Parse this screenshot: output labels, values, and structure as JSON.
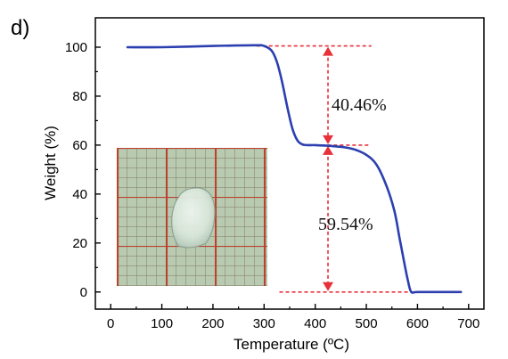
{
  "chart_data": {
    "type": "line",
    "panel_label": "d)",
    "xlabel": "Temperature (ºC)",
    "ylabel": "Weight (%)",
    "xlim": [
      -30,
      730
    ],
    "ylim": [
      -7,
      112
    ],
    "x_ticks": [
      0,
      100,
      200,
      300,
      400,
      500,
      600,
      700
    ],
    "y_ticks": [
      0,
      20,
      40,
      60,
      80,
      100
    ],
    "x_tick_labels": [
      "0",
      "100",
      "200",
      "300",
      "400",
      "500",
      "600",
      "700"
    ],
    "y_tick_labels": [
      "0",
      "20",
      "40",
      "60",
      "80",
      "100"
    ],
    "grid": false,
    "series": [
      {
        "color": "#2b3fb0",
        "x": [
          33,
          100,
          200,
          280,
          300,
          315,
          325,
          335,
          345,
          355,
          365,
          375,
          385,
          400,
          420,
          440,
          460,
          480,
          500,
          520,
          540,
          555,
          565,
          575,
          582,
          588,
          600,
          650,
          685
        ],
        "y": [
          100,
          100,
          100.5,
          100.8,
          100.5,
          98.5,
          94,
          86,
          76,
          67,
          62,
          60.3,
          60,
          60,
          59.8,
          59.5,
          59,
          58,
          56,
          52,
          43,
          33,
          22,
          11,
          4,
          0,
          0,
          0,
          0
        ]
      }
    ],
    "annotations": [
      {
        "text": "40.46%",
        "value": 40.46
      },
      {
        "text": "59.54%",
        "value": 59.54
      }
    ],
    "reference_lines": {
      "color": "#e8303a",
      "levels": [
        100.5,
        60,
        0
      ],
      "arrow_x": 425
    },
    "inset_photo": {
      "colors": {
        "background": "#b8cab0",
        "grid_red": "#b8432e",
        "grid_dark": "#6e5a46",
        "sample": "#e2ece4"
      }
    }
  }
}
